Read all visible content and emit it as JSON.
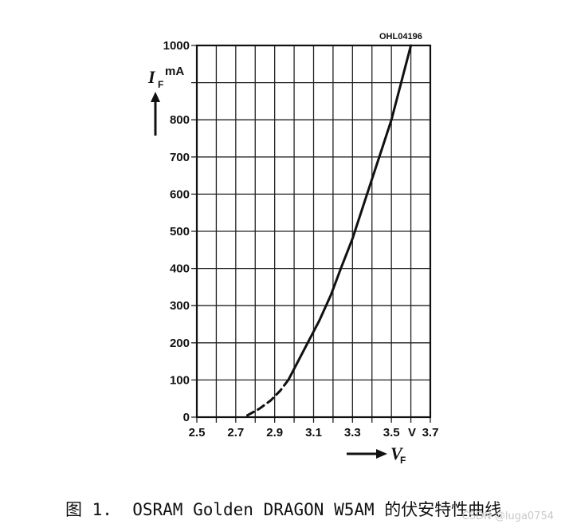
{
  "figure_code": "OHL04196",
  "caption": "图 1.  OSRAM Golden DRAGON W5AM 的伏安特性曲线",
  "watermark": "CSDN @luga0754",
  "chart_data": {
    "type": "line",
    "ylabel": {
      "symbol": "I",
      "subscript": "F"
    },
    "yunit": "mA",
    "xlabel": {
      "symbol": "V",
      "subscript": "F"
    },
    "xunit": "V",
    "xlim": [
      2.5,
      3.7
    ],
    "ylim": [
      0,
      1000
    ],
    "x_ticks": [
      2.5,
      2.6,
      2.7,
      2.8,
      2.9,
      3.0,
      3.1,
      3.2,
      3.3,
      3.4,
      3.5,
      3.6,
      3.7
    ],
    "x_tick_labels": [
      "2.5",
      "",
      "2.7",
      "",
      "2.9",
      "",
      "3.1",
      "",
      "3.3",
      "",
      "3.5",
      "",
      "3.7"
    ],
    "y_ticks": [
      0,
      100,
      200,
      300,
      400,
      500,
      600,
      700,
      800,
      900,
      1000
    ],
    "y_tick_labels": [
      "0",
      "100",
      "200",
      "300",
      "400",
      "500",
      "600",
      "700",
      "800",
      "",
      "1000"
    ],
    "grid": true,
    "series": [
      {
        "style": "dashed",
        "x": [
          2.76,
          2.82,
          2.88,
          2.93,
          2.97
        ],
        "y": [
          5,
          22,
          45,
          72,
          100
        ]
      },
      {
        "style": "solid",
        "x": [
          2.97,
          3.02,
          3.08,
          3.13,
          3.19,
          3.24,
          3.3,
          3.35,
          3.4,
          3.45,
          3.5,
          3.55,
          3.6
        ],
        "y": [
          100,
          150,
          210,
          260,
          330,
          400,
          480,
          560,
          640,
          720,
          800,
          900,
          1000
        ]
      }
    ]
  }
}
